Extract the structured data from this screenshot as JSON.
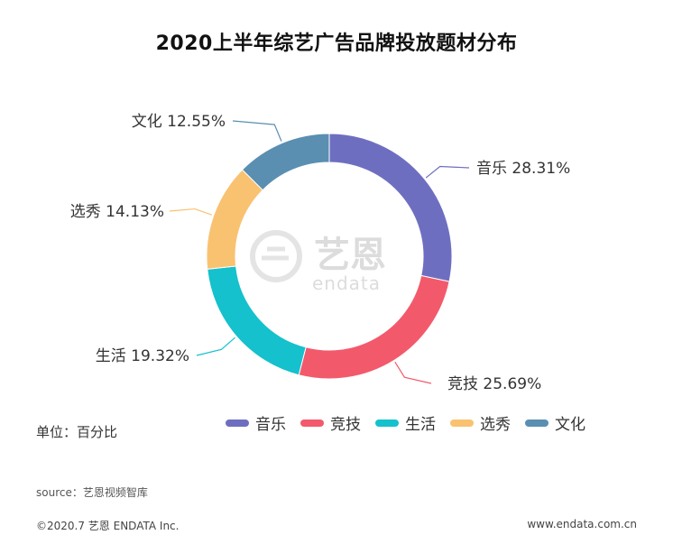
{
  "title": "2020上半年综艺广告品牌投放题材分布",
  "chart_data": {
    "type": "pie",
    "title": "2020上半年综艺广告品牌投放题材分布",
    "unit_label": "单位：百分比",
    "categories": [
      "音乐",
      "竞技",
      "生活",
      "选秀",
      "文化"
    ],
    "values": [
      28.31,
      25.69,
      19.32,
      14.13,
      12.55
    ],
    "value_labels": [
      "28.31%",
      "25.69%",
      "19.32%",
      "14.13%",
      "12.55%"
    ],
    "colors": [
      "#6e6ec1",
      "#f25a6c",
      "#14c1cc",
      "#f9c271",
      "#5a8fb2"
    ],
    "legend": "bottom"
  },
  "watermark": {
    "cn": "艺恩",
    "en": "endata"
  },
  "footer": {
    "source": "source：艺恩视频智库",
    "copyright": "©2020.7 艺恩 ENDATA Inc.",
    "website": "www.endata.com.cn"
  }
}
